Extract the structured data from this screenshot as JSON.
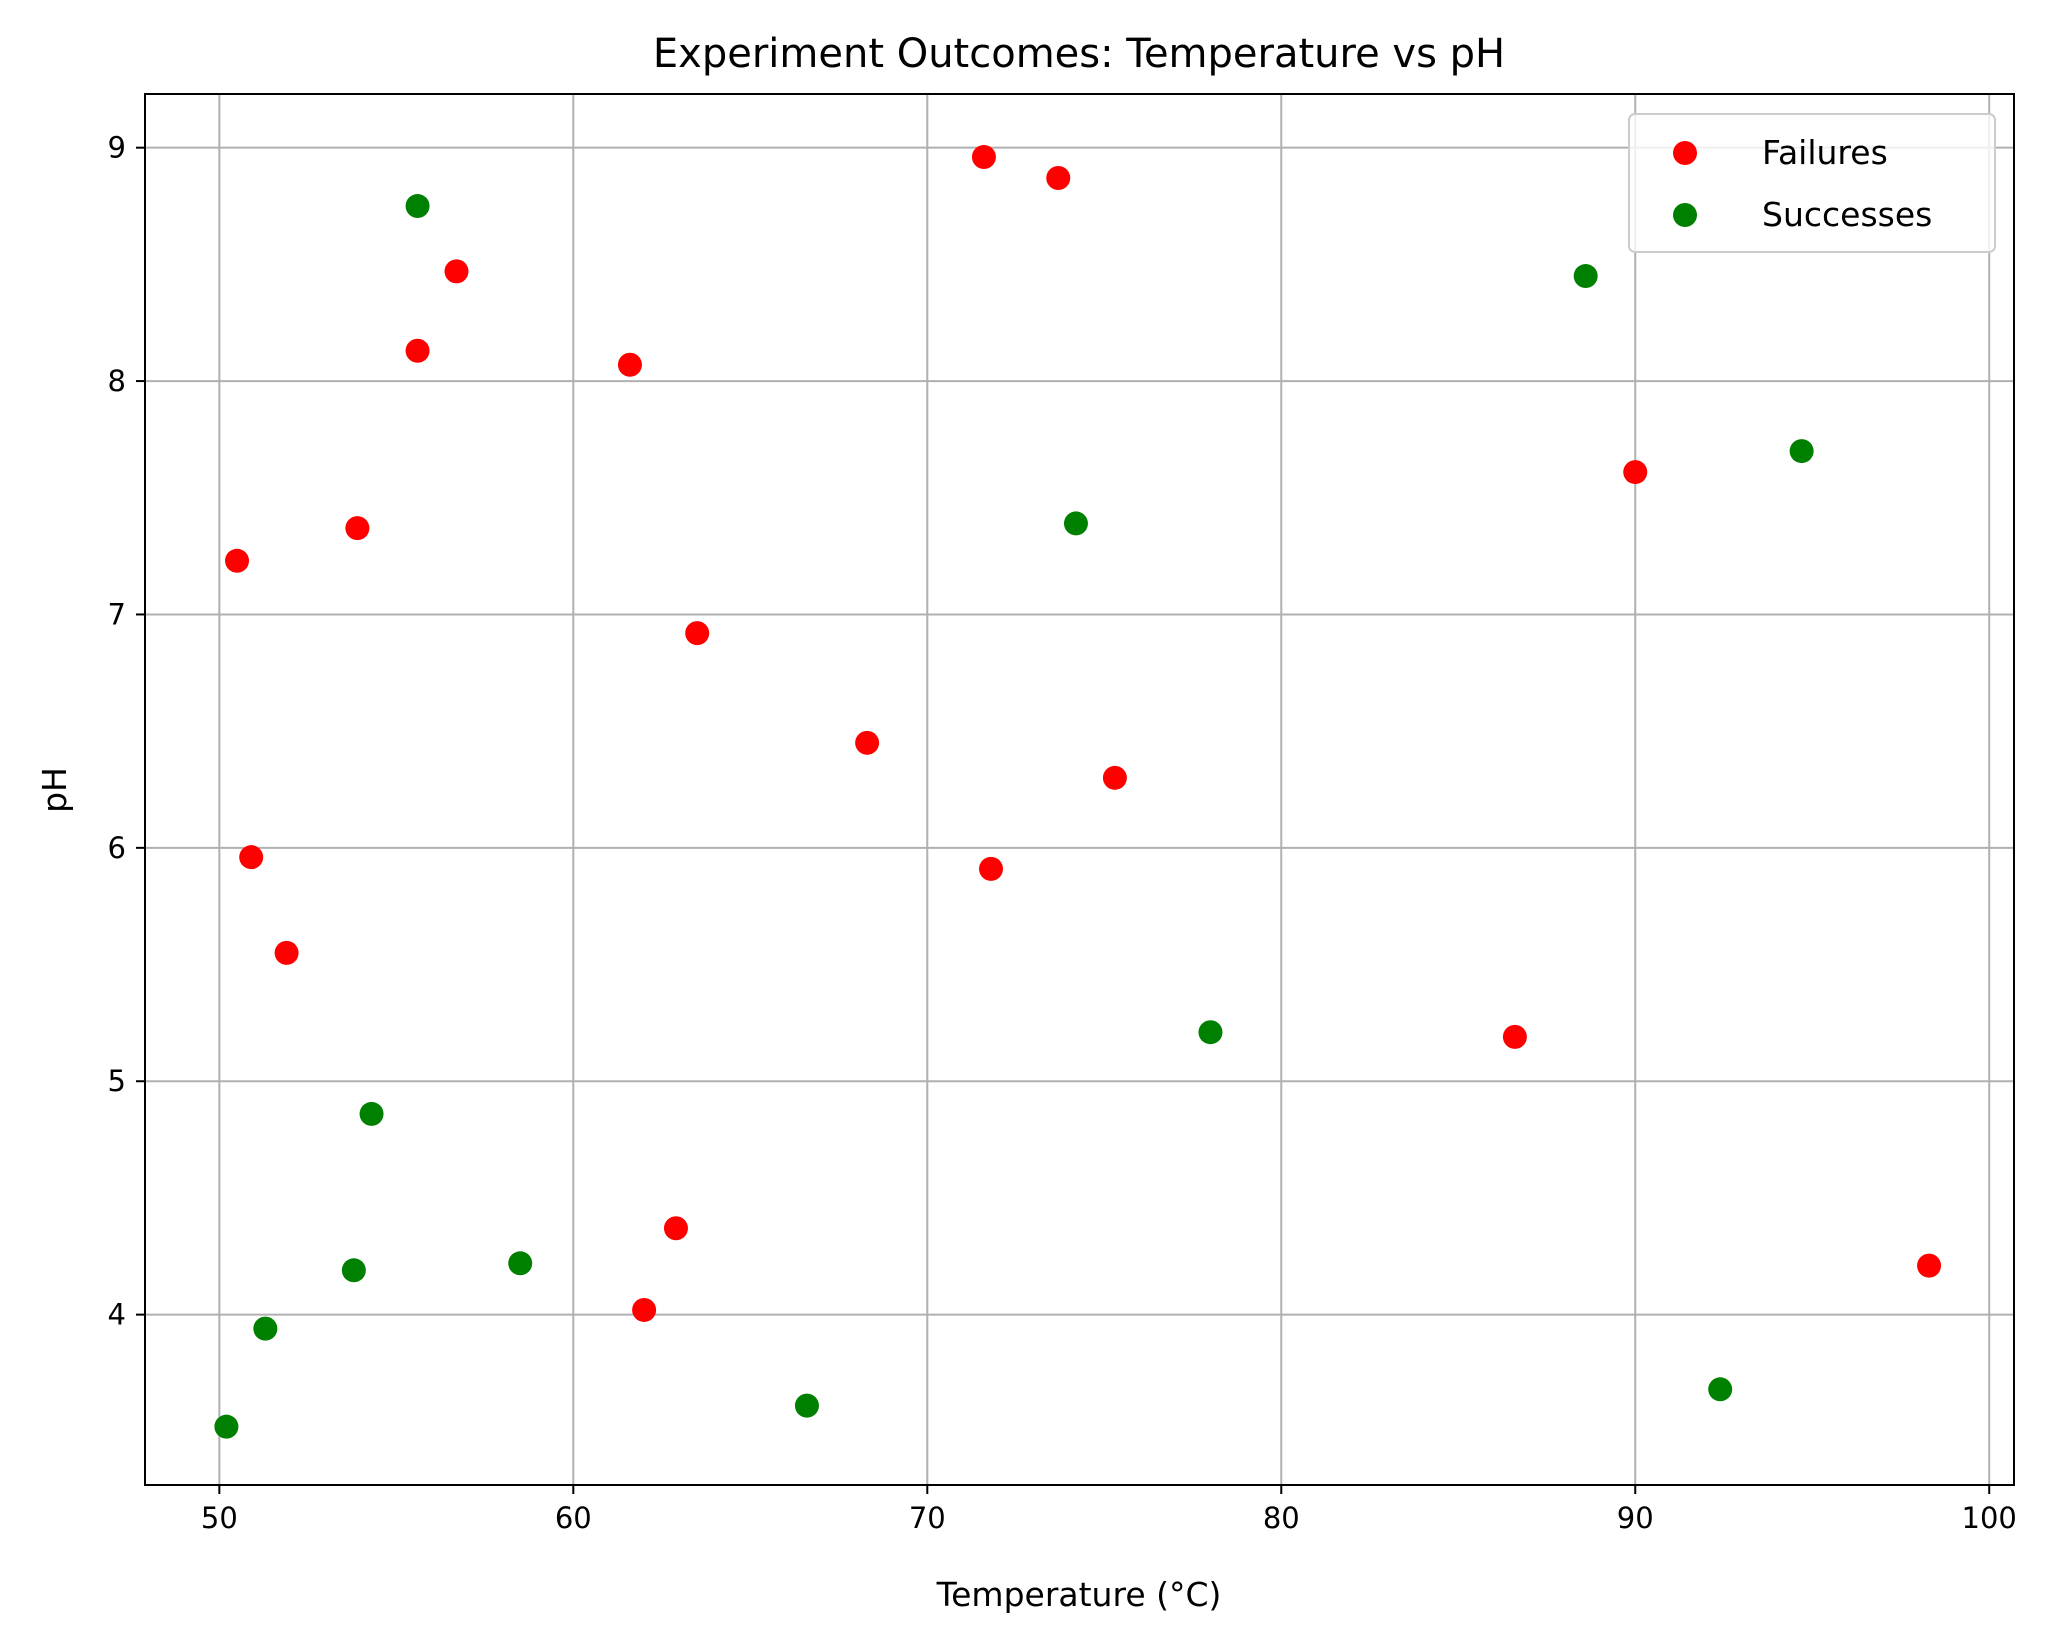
{
  "chart_data": {
    "type": "scatter",
    "title": "Experiment Outcomes: Temperature vs pH",
    "xlabel": "Temperature (°C)",
    "ylabel": "pH",
    "xlim": [
      47.9,
      100.7
    ],
    "ylim": [
      3.27,
      9.23
    ],
    "xticks": [
      50,
      60,
      70,
      80,
      90,
      100
    ],
    "yticks": [
      4,
      5,
      6,
      7,
      8,
      9
    ],
    "grid": true,
    "legend_position": "top-right",
    "series": [
      {
        "name": "Failures",
        "color": "#ff0000",
        "points": [
          {
            "x": 71.6,
            "y": 8.96
          },
          {
            "x": 73.7,
            "y": 8.87
          },
          {
            "x": 56.7,
            "y": 8.47
          },
          {
            "x": 55.6,
            "y": 8.13
          },
          {
            "x": 61.6,
            "y": 8.07
          },
          {
            "x": 53.9,
            "y": 7.37
          },
          {
            "x": 50.5,
            "y": 7.23
          },
          {
            "x": 63.5,
            "y": 6.92
          },
          {
            "x": 68.3,
            "y": 6.45
          },
          {
            "x": 75.3,
            "y": 6.3
          },
          {
            "x": 50.9,
            "y": 5.96
          },
          {
            "x": 71.8,
            "y": 5.91
          },
          {
            "x": 51.9,
            "y": 5.55
          },
          {
            "x": 90.0,
            "y": 7.61
          },
          {
            "x": 86.6,
            "y": 5.19
          },
          {
            "x": 62.9,
            "y": 4.37
          },
          {
            "x": 62.0,
            "y": 4.02
          },
          {
            "x": 98.3,
            "y": 4.21
          }
        ]
      },
      {
        "name": "Successes",
        "color": "#008000",
        "points": [
          {
            "x": 55.6,
            "y": 8.75
          },
          {
            "x": 88.6,
            "y": 8.45
          },
          {
            "x": 94.7,
            "y": 7.7
          },
          {
            "x": 74.2,
            "y": 7.39
          },
          {
            "x": 78.0,
            "y": 5.21
          },
          {
            "x": 54.3,
            "y": 4.86
          },
          {
            "x": 58.5,
            "y": 4.22
          },
          {
            "x": 53.8,
            "y": 4.19
          },
          {
            "x": 51.3,
            "y": 3.94
          },
          {
            "x": 50.2,
            "y": 3.52
          },
          {
            "x": 66.6,
            "y": 3.61
          },
          {
            "x": 92.4,
            "y": 3.68
          }
        ]
      }
    ]
  }
}
